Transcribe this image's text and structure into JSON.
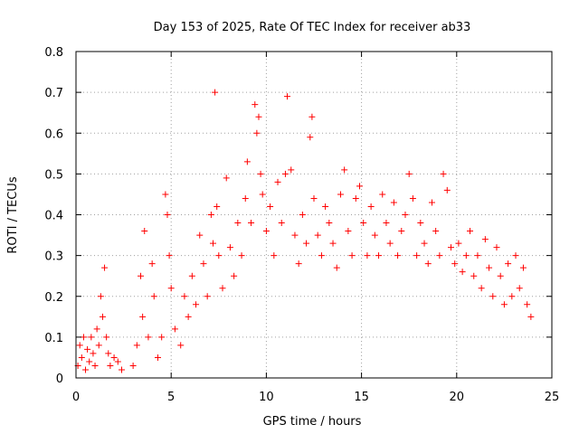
{
  "chart_data": {
    "type": "scatter",
    "title": "Day 153 of 2025, Rate Of TEC Index for receiver ab33",
    "xlabel": "GPS time / hours",
    "ylabel": "ROTI / TECUs",
    "xlim": [
      0,
      25
    ],
    "ylim": [
      0,
      0.8
    ],
    "xticks": [
      0,
      5,
      10,
      15,
      20,
      25
    ],
    "yticks": [
      0,
      0.1,
      0.2,
      0.3,
      0.4,
      0.5,
      0.6,
      0.7,
      0.8
    ],
    "xtick_labels": [
      "0",
      "5",
      "10",
      "15",
      "20",
      "25"
    ],
    "ytick_labels": [
      "0",
      "0.1",
      "0.2",
      "0.3",
      "0.4",
      "0.5",
      "0.6",
      "0.7",
      "0.8"
    ],
    "grid": true,
    "marker": "plus",
    "color": "#ff0000",
    "series": [
      {
        "points": [
          [
            0.1,
            0.03
          ],
          [
            0.2,
            0.08
          ],
          [
            0.3,
            0.05
          ],
          [
            0.4,
            0.1
          ],
          [
            0.5,
            0.02
          ],
          [
            0.6,
            0.07
          ],
          [
            0.7,
            0.04
          ],
          [
            0.8,
            0.1
          ],
          [
            0.9,
            0.06
          ],
          [
            1.0,
            0.03
          ],
          [
            1.1,
            0.12
          ],
          [
            1.2,
            0.08
          ],
          [
            1.3,
            0.2
          ],
          [
            1.4,
            0.15
          ],
          [
            1.5,
            0.27
          ],
          [
            1.6,
            0.1
          ],
          [
            1.7,
            0.06
          ],
          [
            1.8,
            0.03
          ],
          [
            2.0,
            0.05
          ],
          [
            2.2,
            0.04
          ],
          [
            2.4,
            0.02
          ],
          [
            3.0,
            0.03
          ],
          [
            3.2,
            0.08
          ],
          [
            3.4,
            0.25
          ],
          [
            3.5,
            0.15
          ],
          [
            3.6,
            0.36
          ],
          [
            3.8,
            0.1
          ],
          [
            4.0,
            0.28
          ],
          [
            4.1,
            0.2
          ],
          [
            4.3,
            0.05
          ],
          [
            4.5,
            0.1
          ],
          [
            4.7,
            0.45
          ],
          [
            4.8,
            0.4
          ],
          [
            4.9,
            0.3
          ],
          [
            5.0,
            0.22
          ],
          [
            5.2,
            0.12
          ],
          [
            5.5,
            0.08
          ],
          [
            5.7,
            0.2
          ],
          [
            5.9,
            0.15
          ],
          [
            6.1,
            0.25
          ],
          [
            6.3,
            0.18
          ],
          [
            6.5,
            0.35
          ],
          [
            6.7,
            0.28
          ],
          [
            6.9,
            0.2
          ],
          [
            7.1,
            0.4
          ],
          [
            7.2,
            0.33
          ],
          [
            7.3,
            0.7
          ],
          [
            7.4,
            0.42
          ],
          [
            7.5,
            0.3
          ],
          [
            7.7,
            0.22
          ],
          [
            7.9,
            0.49
          ],
          [
            8.1,
            0.32
          ],
          [
            8.3,
            0.25
          ],
          [
            8.5,
            0.38
          ],
          [
            8.7,
            0.3
          ],
          [
            8.9,
            0.44
          ],
          [
            9.0,
            0.53
          ],
          [
            9.2,
            0.38
          ],
          [
            9.4,
            0.67
          ],
          [
            9.5,
            0.6
          ],
          [
            9.6,
            0.64
          ],
          [
            9.7,
            0.5
          ],
          [
            9.8,
            0.45
          ],
          [
            10.0,
            0.36
          ],
          [
            10.2,
            0.42
          ],
          [
            10.4,
            0.3
          ],
          [
            10.6,
            0.48
          ],
          [
            10.8,
            0.38
          ],
          [
            11.0,
            0.5
          ],
          [
            11.1,
            0.69
          ],
          [
            11.3,
            0.51
          ],
          [
            11.5,
            0.35
          ],
          [
            11.7,
            0.28
          ],
          [
            11.9,
            0.4
          ],
          [
            12.1,
            0.33
          ],
          [
            12.3,
            0.59
          ],
          [
            12.4,
            0.64
          ],
          [
            12.5,
            0.44
          ],
          [
            12.7,
            0.35
          ],
          [
            12.9,
            0.3
          ],
          [
            13.1,
            0.42
          ],
          [
            13.3,
            0.38
          ],
          [
            13.5,
            0.33
          ],
          [
            13.7,
            0.27
          ],
          [
            13.9,
            0.45
          ],
          [
            14.1,
            0.51
          ],
          [
            14.3,
            0.36
          ],
          [
            14.5,
            0.3
          ],
          [
            14.7,
            0.44
          ],
          [
            14.9,
            0.47
          ],
          [
            15.1,
            0.38
          ],
          [
            15.3,
            0.3
          ],
          [
            15.5,
            0.42
          ],
          [
            15.7,
            0.35
          ],
          [
            15.9,
            0.3
          ],
          [
            16.1,
            0.45
          ],
          [
            16.3,
            0.38
          ],
          [
            16.5,
            0.33
          ],
          [
            16.7,
            0.43
          ],
          [
            16.9,
            0.3
          ],
          [
            17.1,
            0.36
          ],
          [
            17.3,
            0.4
          ],
          [
            17.5,
            0.5
          ],
          [
            17.7,
            0.44
          ],
          [
            17.9,
            0.3
          ],
          [
            18.1,
            0.38
          ],
          [
            18.3,
            0.33
          ],
          [
            18.5,
            0.28
          ],
          [
            18.7,
            0.43
          ],
          [
            18.9,
            0.36
          ],
          [
            19.1,
            0.3
          ],
          [
            19.3,
            0.5
          ],
          [
            19.5,
            0.46
          ],
          [
            19.7,
            0.32
          ],
          [
            19.9,
            0.28
          ],
          [
            20.1,
            0.33
          ],
          [
            20.3,
            0.26
          ],
          [
            20.5,
            0.3
          ],
          [
            20.7,
            0.36
          ],
          [
            20.9,
            0.25
          ],
          [
            21.1,
            0.3
          ],
          [
            21.3,
            0.22
          ],
          [
            21.5,
            0.34
          ],
          [
            21.7,
            0.27
          ],
          [
            21.9,
            0.2
          ],
          [
            22.1,
            0.32
          ],
          [
            22.3,
            0.25
          ],
          [
            22.5,
            0.18
          ],
          [
            22.7,
            0.28
          ],
          [
            22.9,
            0.2
          ],
          [
            23.1,
            0.3
          ],
          [
            23.3,
            0.22
          ],
          [
            23.5,
            0.27
          ],
          [
            23.7,
            0.18
          ],
          [
            23.9,
            0.15
          ]
        ]
      }
    ]
  }
}
